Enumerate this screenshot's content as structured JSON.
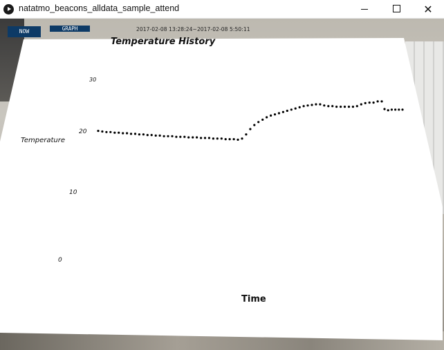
{
  "window": {
    "title": "natatmo_beacons_alldata_sample_attend",
    "controls": [
      "minimize",
      "maximize",
      "close"
    ]
  },
  "toolbar": {
    "now_label": "NOW",
    "graph_label": "GRAPH",
    "date_range": "2017-02-08 13:28:24~2017-02-08  5:50:11"
  },
  "chart_data": {
    "type": "scatter",
    "title": "Temperature History",
    "xlabel": "Time",
    "ylabel": "Temperature",
    "yticks": [
      30,
      20,
      10,
      0
    ],
    "ylim": [
      0,
      30
    ],
    "grid": false,
    "legend": "none",
    "series": [
      {
        "color": "#000000",
        "points": [
          [
            0,
            21.8
          ],
          [
            1,
            21.7
          ],
          [
            2,
            21.6
          ],
          [
            3,
            21.6
          ],
          [
            4,
            21.5
          ],
          [
            5,
            21.5
          ],
          [
            6,
            21.4
          ],
          [
            7,
            21.4
          ],
          [
            8,
            21.3
          ],
          [
            9,
            21.3
          ],
          [
            10,
            21.2
          ],
          [
            11,
            21.2
          ],
          [
            12,
            21.1
          ],
          [
            13,
            21.1
          ],
          [
            14,
            21.0
          ],
          [
            15,
            21.0
          ],
          [
            16,
            20.9
          ],
          [
            17,
            20.9
          ],
          [
            18,
            20.9
          ],
          [
            19,
            20.8
          ],
          [
            20,
            20.8
          ],
          [
            21,
            20.8
          ],
          [
            22,
            20.7
          ],
          [
            23,
            20.7
          ],
          [
            24,
            20.7
          ],
          [
            25,
            20.6
          ],
          [
            26,
            20.6
          ],
          [
            27,
            20.6
          ],
          [
            28,
            20.5
          ],
          [
            29,
            20.5
          ],
          [
            30,
            20.5
          ],
          [
            31,
            20.4
          ],
          [
            32,
            20.4
          ],
          [
            33,
            20.4
          ],
          [
            34,
            20.3
          ],
          [
            35,
            20.5
          ],
          [
            36,
            21.2
          ],
          [
            37,
            22.1
          ],
          [
            38,
            22.8
          ],
          [
            39,
            23.3
          ],
          [
            40,
            23.7
          ],
          [
            41,
            24.1
          ],
          [
            42,
            24.4
          ],
          [
            43,
            24.6
          ],
          [
            44,
            24.8
          ],
          [
            45,
            25.0
          ],
          [
            46,
            25.2
          ],
          [
            47,
            25.4
          ],
          [
            48,
            25.6
          ],
          [
            49,
            25.8
          ],
          [
            50,
            26.0
          ],
          [
            51,
            26.1
          ],
          [
            52,
            26.2
          ],
          [
            53,
            26.3
          ],
          [
            54,
            26.3
          ],
          [
            55,
            26.1
          ],
          [
            56,
            26.0
          ],
          [
            57,
            26.0
          ],
          [
            58,
            25.9
          ],
          [
            59,
            25.9
          ],
          [
            60,
            25.9
          ],
          [
            61,
            25.9
          ],
          [
            62,
            25.9
          ],
          [
            63,
            26.0
          ],
          [
            64,
            26.3
          ],
          [
            65,
            26.5
          ],
          [
            66,
            26.6
          ],
          [
            67,
            26.6
          ],
          [
            68,
            26.8
          ],
          [
            69,
            26.8
          ],
          [
            70,
            25.5
          ],
          [
            71,
            25.3
          ],
          [
            72,
            25.4
          ],
          [
            73,
            25.4
          ],
          [
            74,
            25.4
          ],
          [
            75,
            25.4
          ]
        ]
      }
    ]
  }
}
